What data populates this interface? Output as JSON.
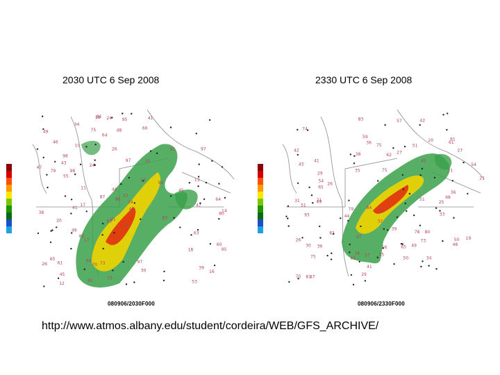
{
  "panels": [
    {
      "time_label": "2030 UTC 6 Sep 2008",
      "stamp": "080906/2030F000"
    },
    {
      "time_label": "2330 UTC 6 Sep 2008",
      "stamp": "080906/2330F000"
    }
  ],
  "source_url": "http://www.atmos.albany.edu/student/cordeira/WEB/GFS_ARCHIVE/",
  "colors": {
    "colorbar": [
      "#8b0000",
      "#d40000",
      "#ff5000",
      "#ff9a00",
      "#ffe600",
      "#78c800",
      "#1e9600",
      "#0a6a14",
      "#1f4fc8",
      "#1fa0e0"
    ],
    "echo_low": "#3aa04a",
    "echo_mid": "#f0d400",
    "echo_high": "#e03010",
    "station_text": "#b8405a",
    "map_lines": "#8a8a8a"
  }
}
